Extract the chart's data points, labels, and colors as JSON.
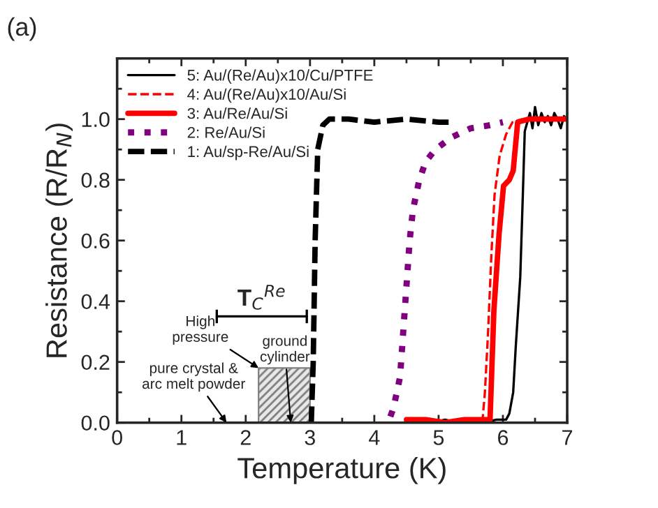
{
  "chart_data": {
    "type": "line",
    "xlabel": "Temperature (K)",
    "ylabel": "Resistance (R/R$_{N}$)",
    "xlim": [
      0,
      7
    ],
    "xticks": [
      0,
      1,
      2,
      3,
      4,
      5,
      6,
      7
    ],
    "ylim": [
      0,
      1.2
    ],
    "yticks": [
      {
        "value": 0,
        "label": "0.0"
      },
      0.2,
      0.4,
      0.6,
      0.8,
      {
        "value": 1,
        "label": "1.0"
      }
    ],
    "grid": false,
    "legend": "top left",
    "series": [
      {
        "name": "5: Au/(Re/Au)x10/Cu/PTFE",
        "color": "#000000",
        "line_style": "solid",
        "x": [
          4.9,
          5.1,
          5.3,
          5.5,
          5.7,
          5.9,
          6.05,
          6.1,
          6.16,
          6.2,
          6.27,
          6.31,
          6.34,
          6.38,
          6.42,
          6.46,
          6.5,
          6.55,
          6.6,
          6.65,
          6.7,
          6.75,
          6.8,
          6.85,
          6.9,
          6.95,
          7.0
        ],
        "values": [
          0.0,
          0.01,
          0.0,
          0.01,
          0.0,
          0.01,
          0.01,
          0.03,
          0.1,
          0.25,
          0.48,
          0.75,
          0.96,
          0.99,
          1.02,
          0.97,
          1.04,
          0.98,
          1.02,
          0.99,
          1.01,
          0.98,
          1.02,
          1.0,
          0.97,
          1.01,
          1.0
        ]
      },
      {
        "name": "4: Au/(Re/Au)x10/Au/Si",
        "color": "#ff0000",
        "line_style": "dashed",
        "x": [
          5.68,
          5.72,
          5.77,
          5.82,
          5.87,
          5.95,
          6.05,
          6.15,
          6.3
        ],
        "values": [
          0.0,
          0.1,
          0.3,
          0.55,
          0.75,
          0.88,
          0.95,
          0.99,
          1.0
        ]
      },
      {
        "name": "3: Au/Re/Au/Si",
        "color": "#ff0000",
        "line_style": "solid",
        "x": [
          4.5,
          4.8,
          5.1,
          5.4,
          5.6,
          5.8,
          5.86,
          5.94,
          6.01,
          6.1,
          6.16,
          6.23,
          6.4,
          6.6,
          6.8,
          7.0
        ],
        "values": [
          0.01,
          0.01,
          0.0,
          0.01,
          0.01,
          0.01,
          0.37,
          0.62,
          0.78,
          0.8,
          0.83,
          0.99,
          1.0,
          1.0,
          1.0,
          1.0
        ]
      },
      {
        "name": "2: Re/Au/Si",
        "color": "#800080",
        "line_style": "dotted",
        "x": [
          4.25,
          4.3,
          4.4,
          4.45,
          4.5,
          4.55,
          4.6,
          4.7,
          4.8,
          4.95,
          5.2,
          5.5,
          5.8,
          6.0
        ],
        "values": [
          0.02,
          0.05,
          0.15,
          0.3,
          0.45,
          0.6,
          0.7,
          0.8,
          0.86,
          0.9,
          0.94,
          0.97,
          0.98,
          0.99
        ]
      },
      {
        "name": "1: Au/sp-Re/Au/Si",
        "color": "#000000",
        "line_style": "dashed",
        "x": [
          3.02,
          3.05,
          3.08,
          3.12,
          3.2,
          3.3,
          3.6,
          4.0,
          4.5,
          5.0,
          5.2
        ],
        "values": [
          0.0,
          0.2,
          0.6,
          0.9,
          0.98,
          1.0,
          1.0,
          0.99,
          1.0,
          0.99,
          0.99
        ]
      },
      {
        "type": "area",
        "color": "#808080",
        "x": [
          2.2,
          3.0
        ],
        "values": [
          0.18,
          0.18
        ]
      },
      {
        "color": "#000000",
        "line_style": "solid",
        "x": [
          1.55,
          2.95
        ],
        "values": [
          0.35,
          0.35
        ]
      }
    ],
    "annotations": [
      "(a)",
      {
        "text": "T$_{C}$$^{Re}$",
        "x": 2.25,
        "y": 0.35
      },
      {
        "text": "High\npressure",
        "x": 2.2,
        "y": 0.18
      },
      {
        "text": "ground\ncylinder",
        "x": 2.7,
        "y": 0.0
      },
      "pure crystal &\narc melt powder"
    ]
  }
}
